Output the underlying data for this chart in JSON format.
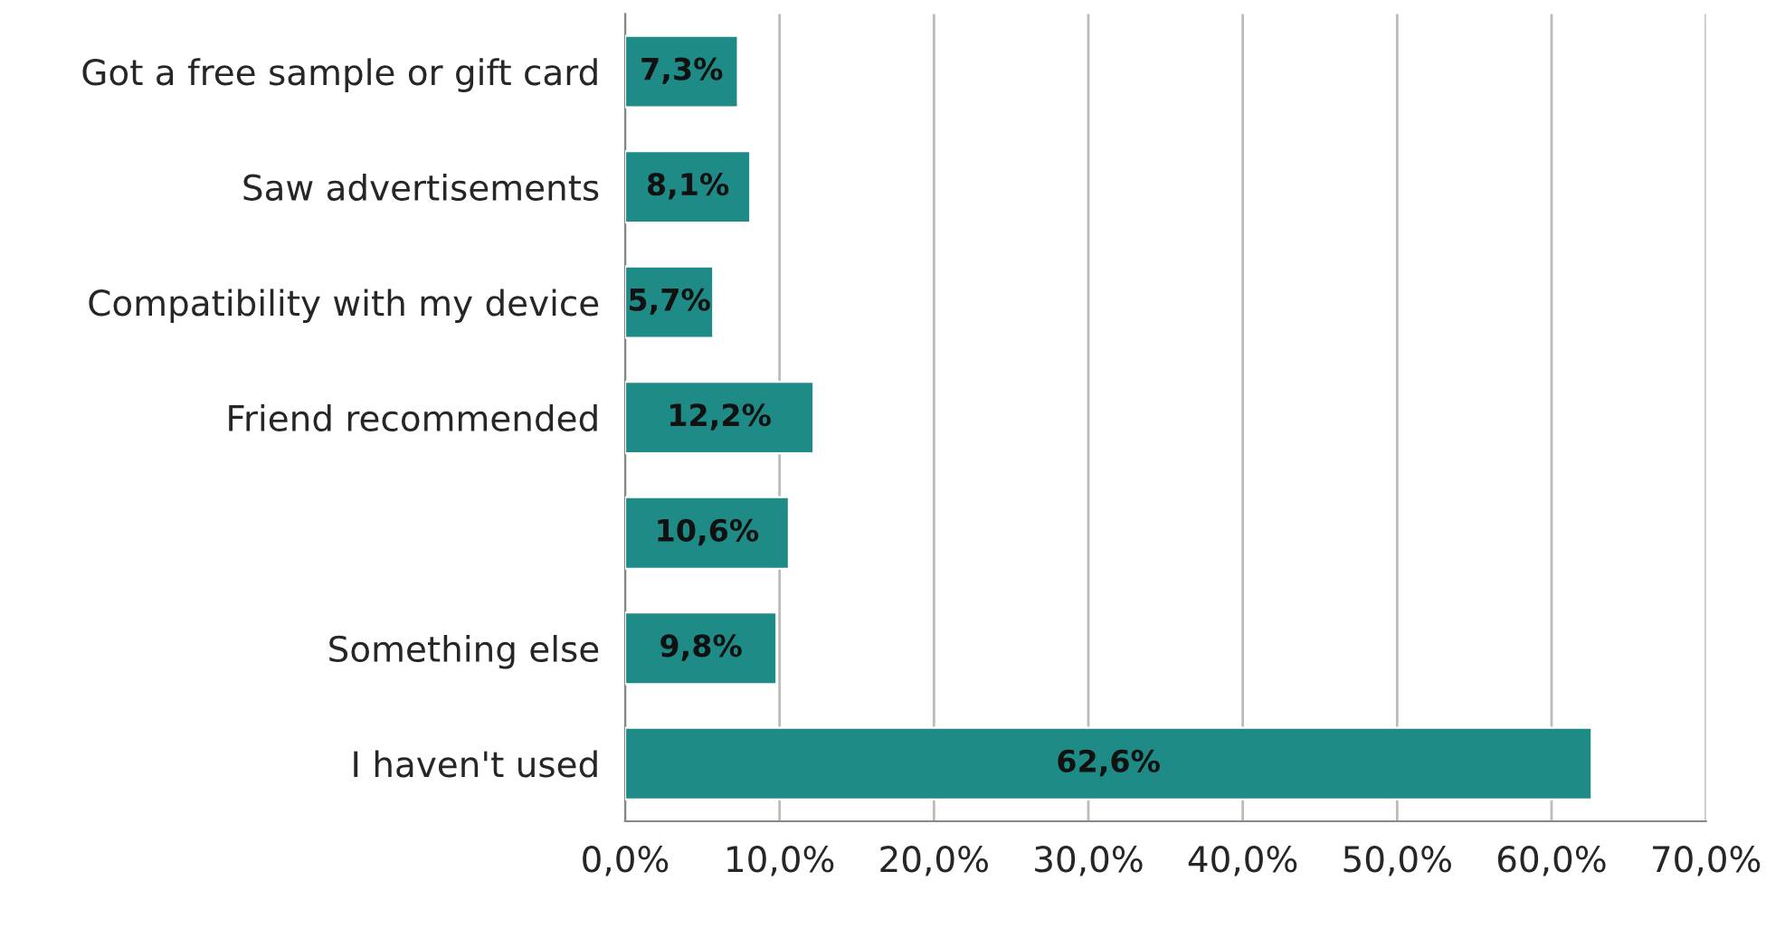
{
  "chart_data": {
    "type": "bar",
    "orientation": "horizontal",
    "categories": [
      "Got a free sample or gift card",
      "Saw advertisements",
      "Compatibility with my device",
      "Friend recommended",
      null,
      "Something else",
      "I haven't used"
    ],
    "values": [
      7.3,
      8.1,
      5.7,
      12.2,
      10.6,
      9.8,
      62.6
    ],
    "value_labels": [
      "7,3%",
      "8,1%",
      "5,7%",
      "12,2%",
      "10,6%",
      "9,8%",
      "62,6%"
    ],
    "color": "#1f8b87",
    "xlim": [
      0,
      70
    ],
    "xticks": [
      {
        "value": 0,
        "label": "0,0%"
      },
      {
        "value": 10,
        "label": "10,0%"
      },
      {
        "value": 20,
        "label": "20,0%"
      },
      {
        "value": 30,
        "label": "30,0%"
      },
      {
        "value": 40,
        "label": "40,0%"
      },
      {
        "value": 50,
        "label": "50,0%"
      },
      {
        "value": 60,
        "label": "60,0%"
      },
      {
        "value": 70,
        "label": "70,0%"
      }
    ],
    "grid": "x"
  }
}
